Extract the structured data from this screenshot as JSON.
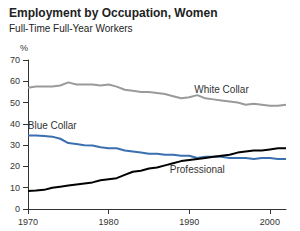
{
  "chart_data": {
    "type": "line",
    "title": "Employment by Occupation, Women",
    "subtitle": "Full-Time Full-Year Workers",
    "y_label": "%",
    "x": [
      1970,
      1971,
      1972,
      1973,
      1974,
      1975,
      1976,
      1977,
      1978,
      1979,
      1980,
      1981,
      1982,
      1983,
      1984,
      1985,
      1986,
      1987,
      1988,
      1989,
      1990,
      1991,
      1992,
      1993,
      1994,
      1995,
      1996,
      1997,
      1998,
      1999,
      2000,
      2001,
      2002
    ],
    "series": [
      {
        "name": "White Collar",
        "color": "#9a9a9a",
        "values": [
          57,
          57.5,
          57.5,
          57.5,
          58,
          59.5,
          58.5,
          58.5,
          58.5,
          58,
          58.5,
          57.5,
          56,
          55.5,
          55,
          55,
          54.5,
          54,
          53,
          52,
          52.5,
          53.5,
          52,
          51.5,
          51,
          50.5,
          50,
          49,
          49.5,
          49,
          48.5,
          48.5,
          49
        ]
      },
      {
        "name": "Blue Collar",
        "color": "#3a6fb0",
        "values": [
          34.5,
          34.5,
          34.3,
          34,
          33,
          31,
          30.5,
          30,
          29.8,
          29,
          28.5,
          28.5,
          27.5,
          27,
          26.5,
          26,
          26,
          25.5,
          25.5,
          25,
          25,
          24,
          24.5,
          24.5,
          24.5,
          24,
          24,
          24,
          23.5,
          24,
          24,
          23.5,
          23.5
        ]
      },
      {
        "name": "Professional",
        "color": "#000000",
        "values": [
          8.5,
          8.7,
          9,
          10,
          10.5,
          11,
          11.5,
          12,
          12.5,
          13.5,
          14,
          14.5,
          16,
          17.5,
          18,
          19,
          19.5,
          20.5,
          21.5,
          22.5,
          23,
          23.5,
          24,
          24.5,
          25,
          25.5,
          26.5,
          27,
          27.5,
          27.5,
          28,
          28.5,
          28.5
        ]
      }
    ],
    "xlim": [
      1970,
      2002
    ],
    "xticks": [
      1970,
      1980,
      1990,
      2000
    ],
    "ylim": [
      0,
      70
    ],
    "yticks": [
      0,
      10,
      20,
      30,
      40,
      50,
      60,
      70
    ],
    "grid": false
  }
}
